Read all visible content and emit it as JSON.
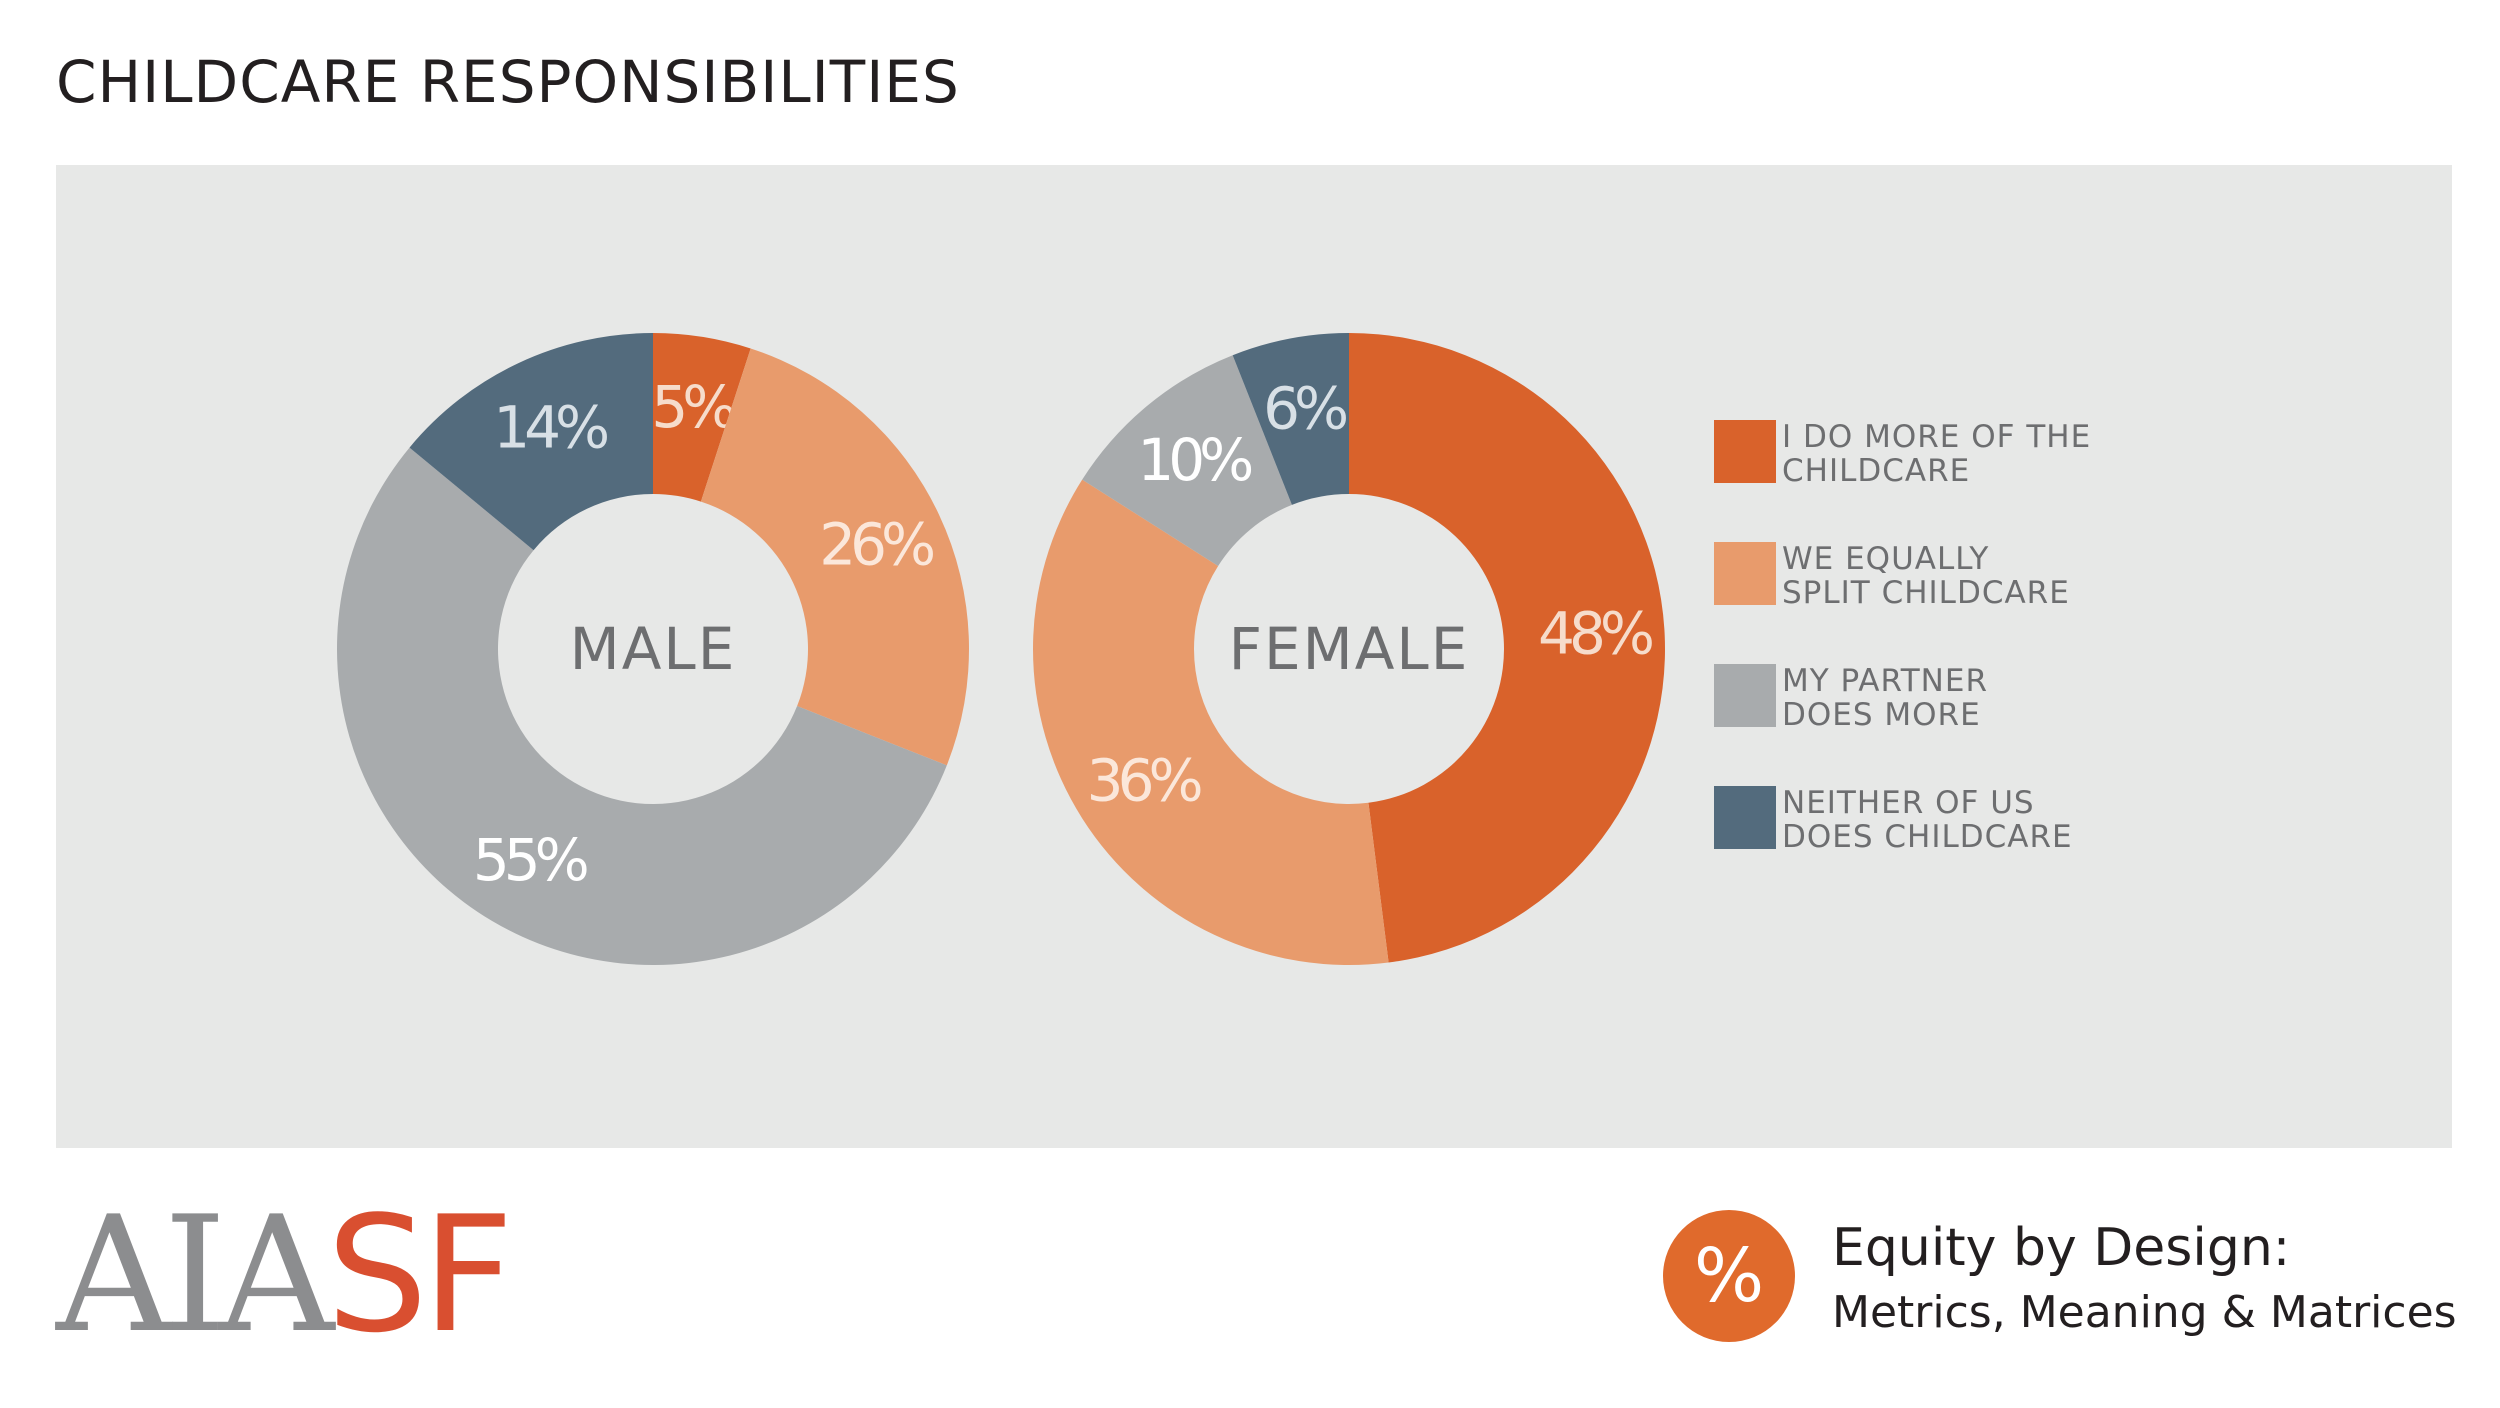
{
  "title": "CHILDCARE RESPONSIBILITIES",
  "colors": {
    "i_do_more": "#d9622b",
    "equal_split": "#e89b6c",
    "partner_does_more": "#a8abad",
    "neither": "#536b7d",
    "panel_background": "#e7e8e7",
    "logo_grey": "#8c8d8f",
    "logo_red": "#d94f30",
    "badge": "#e06a2c"
  },
  "chart_data": [
    {
      "type": "pie",
      "name": "MALE",
      "center_label": "MALE",
      "categories": [
        "I DO MORE OF THE CHILDCARE",
        "WE EQUALLY SPLIT CHILDCARE",
        "MY PARTNER DOES MORE",
        "NEITHER OF US DOES CHILDCARE"
      ],
      "values": [
        5,
        26,
        55,
        14
      ],
      "labels": [
        "5%",
        "26%",
        "55%",
        "14%"
      ]
    },
    {
      "type": "pie",
      "name": "FEMALE",
      "center_label": "FEMALE",
      "categories": [
        "I DO MORE OF THE CHILDCARE",
        "WE EQUALLY SPLIT CHILDCARE",
        "MY PARTNER DOES MORE",
        "NEITHER OF US DOES CHILDCARE"
      ],
      "values": [
        48,
        36,
        10,
        6
      ],
      "labels": [
        "48%",
        "36%",
        "10%",
        "6%"
      ]
    }
  ],
  "legend": {
    "placement": "right",
    "items": [
      {
        "line1": "I DO MORE OF THE",
        "line2": "CHILDCARE",
        "color": "#d9622b"
      },
      {
        "line1": "WE EQUALLY",
        "line2": "SPLIT CHILDCARE",
        "color": "#e89b6c"
      },
      {
        "line1": "MY PARTNER",
        "line2": "DOES MORE",
        "color": "#a8abad"
      },
      {
        "line1": "NEITHER OF US",
        "line2": "DOES CHILDCARE",
        "color": "#536b7d"
      }
    ]
  },
  "footer": {
    "logo_aia": "AIA",
    "logo_sf": "SF",
    "badge_symbol": "%",
    "equity_title": "Equity by Design:",
    "equity_subtitle": "Metrics, Meaning & Matrices"
  }
}
